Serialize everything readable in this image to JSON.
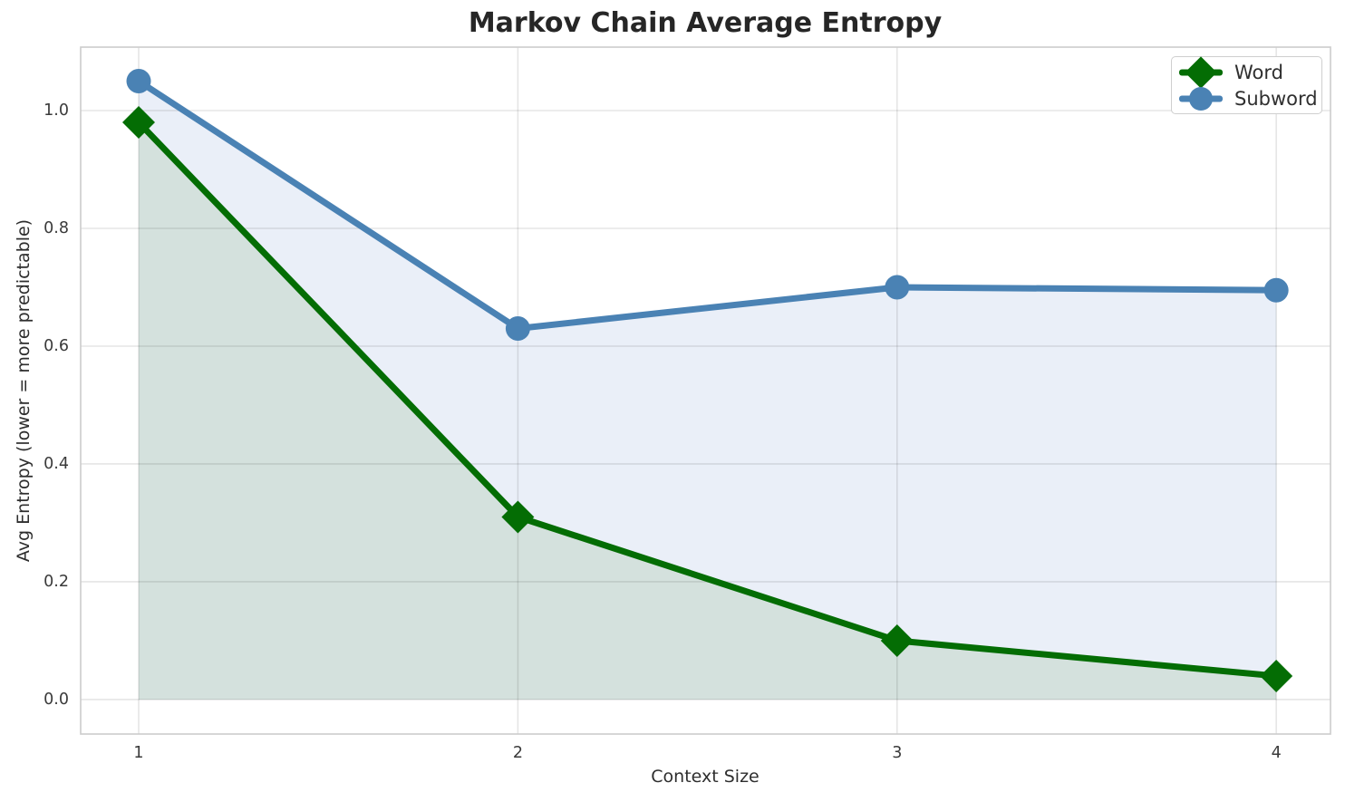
{
  "chart_data": {
    "type": "line",
    "title": "Markov Chain Average Entropy",
    "xlabel": "Context Size",
    "ylabel": "Avg Entropy (lower = more predictable)",
    "x": [
      1,
      2,
      3,
      4
    ],
    "series": [
      {
        "name": "Word",
        "values": [
          0.98,
          0.31,
          0.1,
          0.04
        ],
        "color": "#046d04",
        "marker": "diamond",
        "fill_to_zero": true,
        "fill_color": "#d4e1dd"
      },
      {
        "name": "Subword",
        "values": [
          1.05,
          0.63,
          0.7,
          0.695
        ],
        "color": "#4a82b4",
        "marker": "circle",
        "fill_to_zero": true,
        "fill_color": "#eaeff8"
      }
    ],
    "xticks": [
      1,
      2,
      3,
      4
    ],
    "xtick_labels": [
      "1",
      "2",
      "3",
      "4"
    ],
    "yticks": [
      0.0,
      0.2,
      0.4,
      0.6,
      0.8,
      1.0
    ],
    "ytick_labels": [
      "0.0",
      "0.2",
      "0.4",
      "0.6",
      "0.8",
      "1.0"
    ],
    "xlim": [
      0.847,
      4.143
    ],
    "ylim": [
      -0.0585,
      1.1077
    ],
    "grid": true,
    "grid_color": "rgba(0,0,0,0.10)",
    "spine_color": "#cccccc",
    "legend_position": "upper right",
    "line_width": 7
  }
}
